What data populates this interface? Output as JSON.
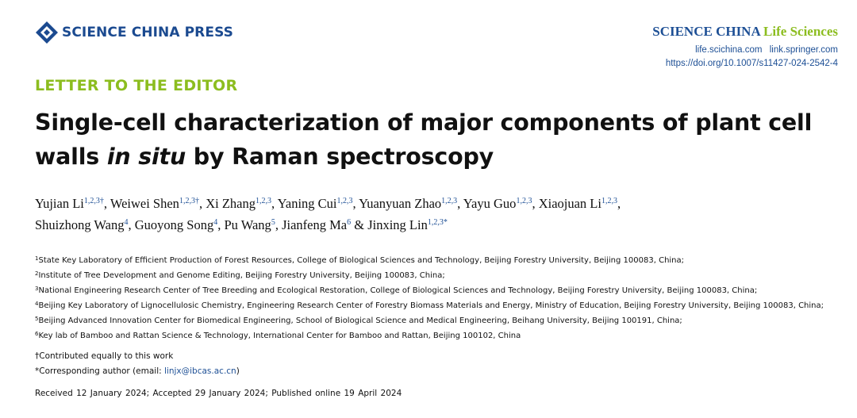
{
  "publisher": {
    "logo_text": "SCIENCE CHINA PRESS",
    "brand_color": "#1b4a90"
  },
  "journal": {
    "name_main": "SCIENCE CHINA",
    "name_sub": "Life Sciences",
    "link1": "life.scichina.com",
    "link2": "link.springer.com",
    "doi": "https://doi.org/10.1007/s11427-024-2542-4",
    "accent_color": "#8cbd1f"
  },
  "section_label": "LETTER TO THE EDITOR",
  "title": {
    "part1": "Single-cell characterization of major components of plant cell walls",
    "italic": "in situ",
    "part2": "by Raman spectroscopy"
  },
  "authors": [
    {
      "name": "Yujian Li",
      "sup": "1,2,3†",
      "sep": ", "
    },
    {
      "name": "Weiwei Shen",
      "sup": "1,2,3†",
      "sep": ", "
    },
    {
      "name": "Xi Zhang",
      "sup": "1,2,3",
      "sep": ", "
    },
    {
      "name": "Yaning Cui",
      "sup": "1,2,3",
      "sep": ", "
    },
    {
      "name": "Yuanyuan Zhao",
      "sup": "1,2,3",
      "sep": ", "
    },
    {
      "name": "Yayu Guo",
      "sup": "1,2,3",
      "sep": ", "
    },
    {
      "name": "Xiaojuan Li",
      "sup": "1,2,3",
      "sep": ","
    },
    {
      "name": "Shuizhong Wang",
      "sup": "4",
      "sep": ", "
    },
    {
      "name": "Guoyong Song",
      "sup": "4",
      "sep": ", "
    },
    {
      "name": "Pu Wang",
      "sup": "5",
      "sep": ", "
    },
    {
      "name": "Jianfeng Ma",
      "sup": "6",
      "sep": " & "
    },
    {
      "name": "Jinxing Lin",
      "sup": "1,2,3*",
      "sep": ""
    }
  ],
  "affiliations": [
    {
      "num": "1",
      "text": "State Key Laboratory of Efficient Production of Forest Resources, College of Biological Sciences and Technology, Beijing Forestry University, Beijing 100083, China;"
    },
    {
      "num": "2",
      "text": "Institute of Tree Development and Genome Editing, Beijing Forestry University, Beijing 100083, China;"
    },
    {
      "num": "3",
      "text": "National Engineering Research Center of Tree Breeding and Ecological Restoration, College of Biological Sciences and Technology, Beijing Forestry University, Beijing 100083, China;"
    },
    {
      "num": "4",
      "text": "Beijing Key Laboratory of Lignocellulosic Chemistry, Engineering Research Center of Forestry Biomass Materials and Energy, Ministry of Education, Beijing Forestry University, Beijing 100083, China;"
    },
    {
      "num": "5",
      "text": "Beijing Advanced Innovation Center for Biomedical Engineering, School of Biological Science and Medical Engineering, Beihang University, Beijing 100191, China;"
    },
    {
      "num": "6",
      "text": "Key lab of Bamboo and Rattan Science & Technology, International Center for Bamboo and Rattan, Beijing 100102, China"
    }
  ],
  "notes": {
    "contributed": "†Contributed equally to this work",
    "corresponding_prefix": "*Corresponding author (email: ",
    "email": "linjx@ibcas.ac.cn",
    "corresponding_suffix": ")"
  },
  "dates": "Received 12 January 2024;  Accepted 29 January 2024;  Published online 19 April 2024"
}
